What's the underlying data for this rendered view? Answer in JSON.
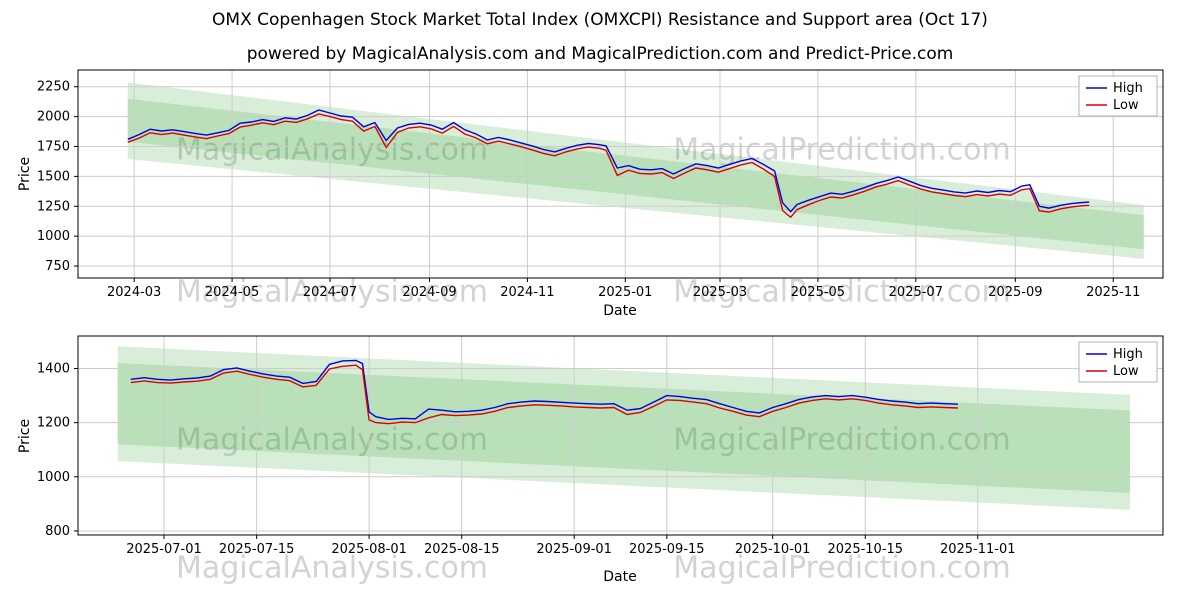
{
  "figure": {
    "title": "OMX Copenhagen Stock Market Total Index (OMXCPI) Resistance and Support area (Oct 17)",
    "subtitle": "powered by MagicalAnalysis.com and MagicalPrediction.com and Predict-Price.com",
    "watermark": {
      "left_text": "MagicalAnalysis.com",
      "right_text": "MagicalPrediction.com"
    }
  },
  "axes": {
    "x_label": "Date",
    "y_label": "Price"
  },
  "chart_data": [
    {
      "type": "line",
      "xlabel": "Date",
      "ylabel": "Price",
      "legend_position": "upper right",
      "grid": true,
      "ylim": [
        650,
        2390
      ],
      "yticks": [
        750,
        1000,
        1250,
        1500,
        1750,
        2000,
        2250
      ],
      "xlim": [
        "2024-01-26",
        "2025-12-02"
      ],
      "xticks": [
        {
          "date": "2024-03-01",
          "label": "2024-03"
        },
        {
          "date": "2024-05-01",
          "label": "2024-05"
        },
        {
          "date": "2024-07-01",
          "label": "2024-07"
        },
        {
          "date": "2024-09-01",
          "label": "2024-09"
        },
        {
          "date": "2024-11-01",
          "label": "2024-11"
        },
        {
          "date": "2025-01-01",
          "label": "2025-01"
        },
        {
          "date": "2025-03-01",
          "label": "2025-03"
        },
        {
          "date": "2025-05-01",
          "label": "2025-05"
        },
        {
          "date": "2025-07-01",
          "label": "2025-07"
        },
        {
          "date": "2025-09-01",
          "label": "2025-09"
        },
        {
          "date": "2025-11-01",
          "label": "2025-11"
        }
      ],
      "band_color": "#2ca02c",
      "band_outer": {
        "dates": [
          "2024-02-26",
          "2025-11-20"
        ],
        "top": [
          2285,
          1260
        ],
        "bottom": [
          1645,
          810
        ]
      },
      "band_inner": {
        "dates": [
          "2024-02-26",
          "2025-11-20"
        ],
        "top": [
          2150,
          1175
        ],
        "bottom": [
          1790,
          890
        ]
      },
      "dates": [
        "2024-02-26",
        "2024-03-04",
        "2024-03-11",
        "2024-03-18",
        "2024-03-25",
        "2024-04-01",
        "2024-04-08",
        "2024-04-15",
        "2024-04-22",
        "2024-04-29",
        "2024-05-06",
        "2024-05-13",
        "2024-05-20",
        "2024-05-27",
        "2024-06-03",
        "2024-06-10",
        "2024-06-17",
        "2024-06-24",
        "2024-07-01",
        "2024-07-08",
        "2024-07-15",
        "2024-07-22",
        "2024-07-29",
        "2024-08-05",
        "2024-08-12",
        "2024-08-19",
        "2024-08-26",
        "2024-09-02",
        "2024-09-09",
        "2024-09-16",
        "2024-09-23",
        "2024-09-30",
        "2024-10-07",
        "2024-10-14",
        "2024-10-21",
        "2024-10-28",
        "2024-11-04",
        "2024-11-11",
        "2024-11-18",
        "2024-11-25",
        "2024-12-02",
        "2024-12-09",
        "2024-12-16",
        "2024-12-20",
        "2024-12-27",
        "2025-01-03",
        "2025-01-10",
        "2025-01-17",
        "2025-01-24",
        "2025-01-31",
        "2025-02-07",
        "2025-02-14",
        "2025-02-21",
        "2025-02-28",
        "2025-03-07",
        "2025-03-14",
        "2025-03-21",
        "2025-03-28",
        "2025-04-04",
        "2025-04-09",
        "2025-04-14",
        "2025-04-18",
        "2025-04-25",
        "2025-05-02",
        "2025-05-09",
        "2025-05-16",
        "2025-05-23",
        "2025-05-30",
        "2025-06-06",
        "2025-06-13",
        "2025-06-20",
        "2025-06-27",
        "2025-07-04",
        "2025-07-11",
        "2025-07-18",
        "2025-07-25",
        "2025-08-01",
        "2025-08-08",
        "2025-08-15",
        "2025-08-22",
        "2025-08-29",
        "2025-09-05",
        "2025-09-10",
        "2025-09-16",
        "2025-09-22",
        "2025-09-29",
        "2025-10-06",
        "2025-10-13",
        "2025-10-17"
      ],
      "series": [
        {
          "name": "High",
          "color": "#0000dd",
          "values": [
            1810,
            1850,
            1895,
            1880,
            1890,
            1875,
            1860,
            1845,
            1865,
            1885,
            1945,
            1955,
            1975,
            1960,
            1990,
            1980,
            2010,
            2055,
            2030,
            2005,
            1995,
            1915,
            1950,
            1800,
            1905,
            1935,
            1945,
            1930,
            1895,
            1950,
            1890,
            1855,
            1805,
            1825,
            1805,
            1780,
            1755,
            1725,
            1705,
            1735,
            1760,
            1775,
            1765,
            1755,
            1570,
            1590,
            1560,
            1555,
            1565,
            1520,
            1565,
            1605,
            1590,
            1570,
            1600,
            1630,
            1650,
            1600,
            1545,
            1280,
            1205,
            1265,
            1300,
            1330,
            1360,
            1350,
            1375,
            1405,
            1440,
            1465,
            1495,
            1460,
            1425,
            1400,
            1385,
            1370,
            1360,
            1378,
            1365,
            1382,
            1372,
            1420,
            1430,
            1250,
            1235,
            1258,
            1272,
            1282,
            1285
          ]
        },
        {
          "name": "Low",
          "color": "#dd0000",
          "values": [
            1785,
            1820,
            1865,
            1850,
            1862,
            1845,
            1830,
            1815,
            1838,
            1858,
            1912,
            1928,
            1948,
            1932,
            1962,
            1952,
            1982,
            2022,
            2000,
            1975,
            1962,
            1878,
            1918,
            1742,
            1868,
            1905,
            1915,
            1898,
            1862,
            1918,
            1855,
            1822,
            1772,
            1795,
            1772,
            1748,
            1722,
            1692,
            1672,
            1705,
            1730,
            1745,
            1735,
            1718,
            1508,
            1552,
            1525,
            1520,
            1532,
            1482,
            1528,
            1570,
            1555,
            1535,
            1565,
            1596,
            1616,
            1562,
            1498,
            1215,
            1158,
            1222,
            1262,
            1298,
            1328,
            1318,
            1345,
            1375,
            1410,
            1435,
            1465,
            1428,
            1395,
            1370,
            1355,
            1340,
            1330,
            1348,
            1336,
            1352,
            1342,
            1388,
            1398,
            1212,
            1202,
            1228,
            1245,
            1255,
            1258
          ]
        }
      ]
    },
    {
      "type": "line",
      "xlabel": "Date",
      "ylabel": "Price",
      "legend_position": "upper right",
      "grid": true,
      "ylim": [
        785,
        1520
      ],
      "yticks": [
        800,
        1000,
        1200,
        1400
      ],
      "xlim": [
        "2025-06-18",
        "2025-11-29"
      ],
      "xticks": [
        {
          "date": "2025-07-01",
          "label": "2025-07-01"
        },
        {
          "date": "2025-07-15",
          "label": "2025-07-15"
        },
        {
          "date": "2025-08-01",
          "label": "2025-08-01"
        },
        {
          "date": "2025-08-15",
          "label": "2025-08-15"
        },
        {
          "date": "2025-09-01",
          "label": "2025-09-01"
        },
        {
          "date": "2025-09-15",
          "label": "2025-09-15"
        },
        {
          "date": "2025-10-01",
          "label": "2025-10-01"
        },
        {
          "date": "2025-10-15",
          "label": "2025-10-15"
        },
        {
          "date": "2025-11-01",
          "label": "2025-11-01"
        }
      ],
      "band_color": "#2ca02c",
      "band_outer": {
        "dates": [
          "2025-06-24",
          "2025-11-24"
        ],
        "top": [
          1482,
          1302
        ],
        "bottom": [
          1058,
          878
        ]
      },
      "band_inner": {
        "dates": [
          "2025-06-24",
          "2025-11-24"
        ],
        "top": [
          1420,
          1245
        ],
        "bottom": [
          1120,
          940
        ]
      },
      "dates": [
        "2025-06-26",
        "2025-06-28",
        "2025-06-30",
        "2025-07-02",
        "2025-07-04",
        "2025-07-06",
        "2025-07-08",
        "2025-07-10",
        "2025-07-12",
        "2025-07-14",
        "2025-07-16",
        "2025-07-18",
        "2025-07-20",
        "2025-07-22",
        "2025-07-24",
        "2025-07-26",
        "2025-07-28",
        "2025-07-30",
        "2025-07-31",
        "2025-08-01",
        "2025-08-02",
        "2025-08-04",
        "2025-08-06",
        "2025-08-08",
        "2025-08-10",
        "2025-08-12",
        "2025-08-14",
        "2025-08-16",
        "2025-08-18",
        "2025-08-20",
        "2025-08-22",
        "2025-08-24",
        "2025-08-26",
        "2025-08-28",
        "2025-08-30",
        "2025-09-01",
        "2025-09-03",
        "2025-09-05",
        "2025-09-07",
        "2025-09-09",
        "2025-09-11",
        "2025-09-13",
        "2025-09-15",
        "2025-09-17",
        "2025-09-19",
        "2025-09-21",
        "2025-09-23",
        "2025-09-25",
        "2025-09-27",
        "2025-09-29",
        "2025-10-01",
        "2025-10-03",
        "2025-10-05",
        "2025-10-07",
        "2025-10-09",
        "2025-10-11",
        "2025-10-13",
        "2025-10-15",
        "2025-10-17",
        "2025-10-19",
        "2025-10-21",
        "2025-10-23",
        "2025-10-25",
        "2025-10-27",
        "2025-10-29"
      ],
      "series": [
        {
          "name": "High",
          "color": "#0000dd",
          "values": [
            1360,
            1366,
            1360,
            1357,
            1362,
            1365,
            1372,
            1396,
            1402,
            1390,
            1380,
            1372,
            1368,
            1345,
            1352,
            1415,
            1428,
            1430,
            1418,
            1240,
            1222,
            1212,
            1216,
            1214,
            1250,
            1246,
            1240,
            1242,
            1246,
            1256,
            1270,
            1276,
            1280,
            1278,
            1275,
            1272,
            1270,
            1268,
            1270,
            1246,
            1252,
            1276,
            1300,
            1296,
            1290,
            1285,
            1270,
            1256,
            1242,
            1236,
            1256,
            1270,
            1286,
            1295,
            1300,
            1296,
            1300,
            1294,
            1286,
            1280,
            1276,
            1270,
            1272,
            1270,
            1268
          ]
        },
        {
          "name": "Low",
          "color": "#dd0000",
          "values": [
            1348,
            1354,
            1348,
            1346,
            1350,
            1353,
            1360,
            1383,
            1390,
            1378,
            1368,
            1360,
            1355,
            1332,
            1338,
            1398,
            1408,
            1412,
            1395,
            1210,
            1200,
            1196,
            1202,
            1200,
            1218,
            1230,
            1226,
            1228,
            1232,
            1242,
            1256,
            1262,
            1266,
            1264,
            1262,
            1258,
            1256,
            1254,
            1256,
            1230,
            1238,
            1260,
            1284,
            1282,
            1276,
            1270,
            1254,
            1242,
            1228,
            1222,
            1242,
            1256,
            1272,
            1282,
            1288,
            1284,
            1288,
            1282,
            1272,
            1266,
            1262,
            1256,
            1258,
            1256,
            1254
          ]
        }
      ]
    }
  ]
}
